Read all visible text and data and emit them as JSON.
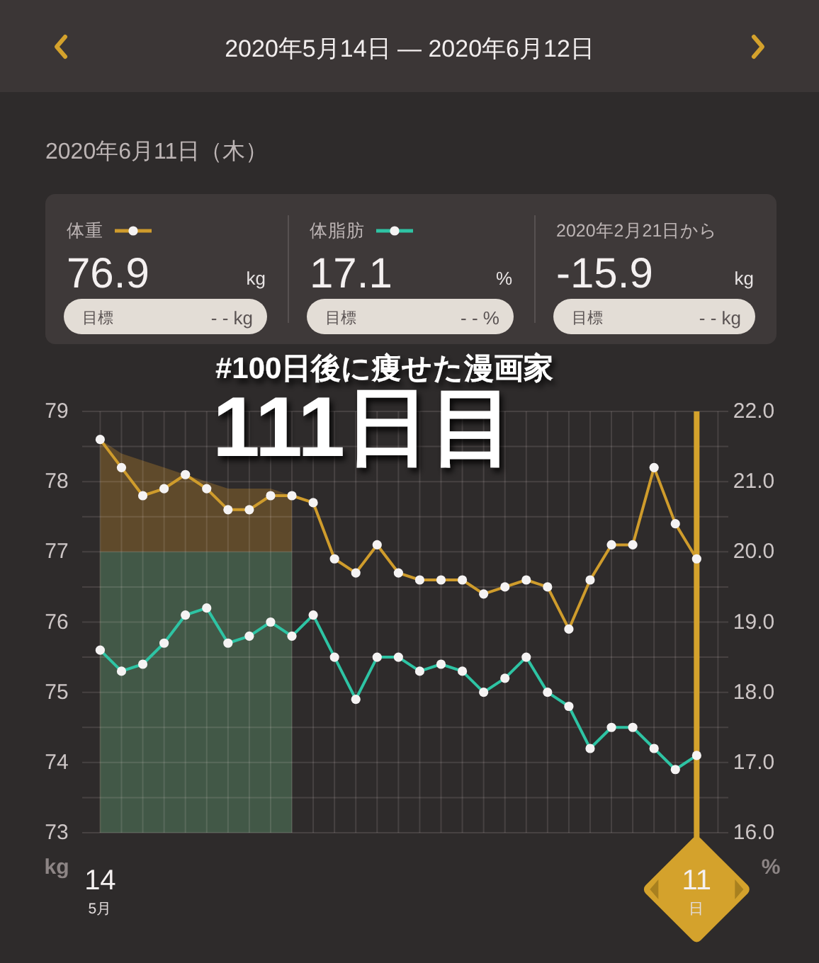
{
  "chart_data": {
    "type": "line",
    "title": "2020年5月14日 — 2020年6月12日",
    "subtitle": "2020年6月11日（木）",
    "ylabel": "kg",
    "y2label": "%",
    "x": [
      "2020-05-14",
      "2020-05-15",
      "2020-05-16",
      "2020-05-17",
      "2020-05-18",
      "2020-05-19",
      "2020-05-20",
      "2020-05-21",
      "2020-05-22",
      "2020-05-23",
      "2020-05-24",
      "2020-05-25",
      "2020-05-26",
      "2020-05-27",
      "2020-05-28",
      "2020-05-29",
      "2020-05-30",
      "2020-05-31",
      "2020-06-01",
      "2020-06-02",
      "2020-06-03",
      "2020-06-04",
      "2020-06-05",
      "2020-06-06",
      "2020-06-07",
      "2020-06-08",
      "2020-06-09",
      "2020-06-10",
      "2020-06-11"
    ],
    "series": [
      {
        "type": "area",
        "marker": "none",
        "x": [
          "2020-05-14",
          "2020-05-15",
          "2020-05-16",
          "2020-05-17",
          "2020-05-18",
          "2020-05-19",
          "2020-05-20",
          "2020-05-21",
          "2020-05-22",
          "2020-05-23"
        ],
        "values": [
          78.6,
          78.4,
          78.3,
          78.2,
          78.1,
          78.0,
          77.9,
          77.9,
          77.9,
          77.8
        ],
        "color": "#5f4a2b"
      },
      {
        "type": "area",
        "marker": "none",
        "x": [
          "2020-05-14",
          "2020-05-15",
          "2020-05-16",
          "2020-05-17",
          "2020-05-18",
          "2020-05-19",
          "2020-05-20",
          "2020-05-21",
          "2020-05-22",
          "2020-05-23"
        ],
        "values": [
          77,
          77,
          77,
          77,
          77,
          77,
          77,
          77,
          77,
          77
        ],
        "color": "#425847"
      },
      {
        "name": "体重",
        "color": "#cf9c2c",
        "values": [
          78.6,
          78.2,
          77.8,
          77.9,
          78.1,
          77.9,
          77.6,
          77.6,
          77.8,
          77.8,
          77.7,
          76.9,
          76.7,
          77.1,
          76.7,
          76.6,
          76.6,
          76.6,
          76.4,
          76.5,
          76.6,
          76.5,
          75.9,
          76.6,
          77.1,
          77.1,
          78.2,
          77.4,
          76.9
        ]
      },
      {
        "name": "体脂肪",
        "color": "#2ec4a4",
        "axis": "y2",
        "values": [
          18.6,
          18.3,
          18.4,
          18.7,
          19.1,
          19.2,
          18.7,
          18.8,
          19.0,
          18.8,
          19.1,
          18.5,
          17.9,
          18.5,
          18.5,
          18.3,
          18.4,
          18.3,
          18.0,
          18.2,
          18.5,
          18.0,
          17.8,
          17.2,
          17.5,
          17.5,
          17.2,
          16.9,
          17.1
        ]
      }
    ],
    "marker": "circle",
    "grid": true,
    "legend": "top",
    "xlim": [
      "2020-05-14",
      "2020-06-12"
    ],
    "xticks": [
      {
        "value": "2020-05-14",
        "label": "14$_{5月}$"
      },
      {
        "value": "2020-05-15",
        "label": null
      },
      {
        "value": "2020-05-16",
        "label": null
      },
      {
        "value": "2020-05-17",
        "label": null
      },
      {
        "value": "2020-05-18",
        "label": null
      },
      {
        "value": "2020-05-19",
        "label": null
      },
      {
        "value": "2020-05-20",
        "label": null
      },
      {
        "value": "2020-05-21",
        "label": null
      },
      {
        "value": "2020-05-22",
        "label": null
      },
      {
        "value": "2020-05-23",
        "label": null
      },
      {
        "value": "2020-05-24",
        "label": null
      },
      {
        "value": "2020-05-25",
        "label": null
      },
      {
        "value": "2020-05-26",
        "label": null
      },
      {
        "value": "2020-05-27",
        "label": null
      },
      {
        "value": "2020-05-28",
        "label": null
      },
      {
        "value": "2020-05-29",
        "label": null
      },
      {
        "value": "2020-05-30",
        "label": null
      },
      {
        "value": "2020-05-31",
        "label": null
      },
      {
        "value": "2020-06-01",
        "label": null
      },
      {
        "value": "2020-06-02",
        "label": null
      },
      {
        "value": "2020-06-03",
        "label": null
      },
      {
        "value": "2020-06-04",
        "label": null
      },
      {
        "value": "2020-06-05",
        "label": null
      },
      {
        "value": "2020-06-06",
        "label": null
      },
      {
        "value": "2020-06-07",
        "label": null
      },
      {
        "value": "2020-06-08",
        "label": null
      },
      {
        "value": "2020-06-09",
        "label": null
      },
      {
        "value": "2020-06-10",
        "label": null
      },
      {
        "value": "2020-06-11",
        "label": "11$_{日}$"
      },
      {
        "value": "2020-06-12",
        "label": null
      }
    ],
    "ylim": [
      73,
      79
    ],
    "yticks": [
      {
        "value": 73,
        "label": "73"
      },
      {
        "value": 73.5,
        "label": null
      },
      {
        "value": 74,
        "label": "74"
      },
      {
        "value": 74.5,
        "label": null
      },
      {
        "value": 75,
        "label": "75"
      },
      {
        "value": 75.5,
        "label": null
      },
      {
        "value": 76,
        "label": "76"
      },
      {
        "value": 76.5,
        "label": null
      },
      {
        "value": 77,
        "label": "77"
      },
      {
        "value": 77.5,
        "label": null
      },
      {
        "value": 78,
        "label": "78"
      },
      {
        "value": 78.5,
        "label": null
      },
      {
        "value": 79,
        "label": "79"
      }
    ],
    "y2lim": [
      16,
      22
    ],
    "y2ticks": [
      {
        "value": 16,
        "label": "16.0"
      },
      {
        "value": 17,
        "label": "17.0"
      },
      {
        "value": 18,
        "label": "18.0"
      },
      {
        "value": 19,
        "label": "19.0"
      },
      {
        "value": 20,
        "label": "20.0"
      },
      {
        "value": 21,
        "label": "21.0"
      },
      {
        "value": 22,
        "label": "22.0"
      }
    ],
    "ref_lines": [
      {
        "axis": "x",
        "value": "2020-06-11",
        "color": "#d4a22c"
      }
    ],
    "annotations": [
      "76.9",
      "kg",
      "目標",
      "- - kg",
      "17.1",
      "%",
      "目標",
      "- - %",
      "2020年2月21日から",
      "-15.9",
      "kg",
      "目標",
      "- - kg",
      "#100日後に痩せた漫画家",
      "111日目"
    ]
  }
}
